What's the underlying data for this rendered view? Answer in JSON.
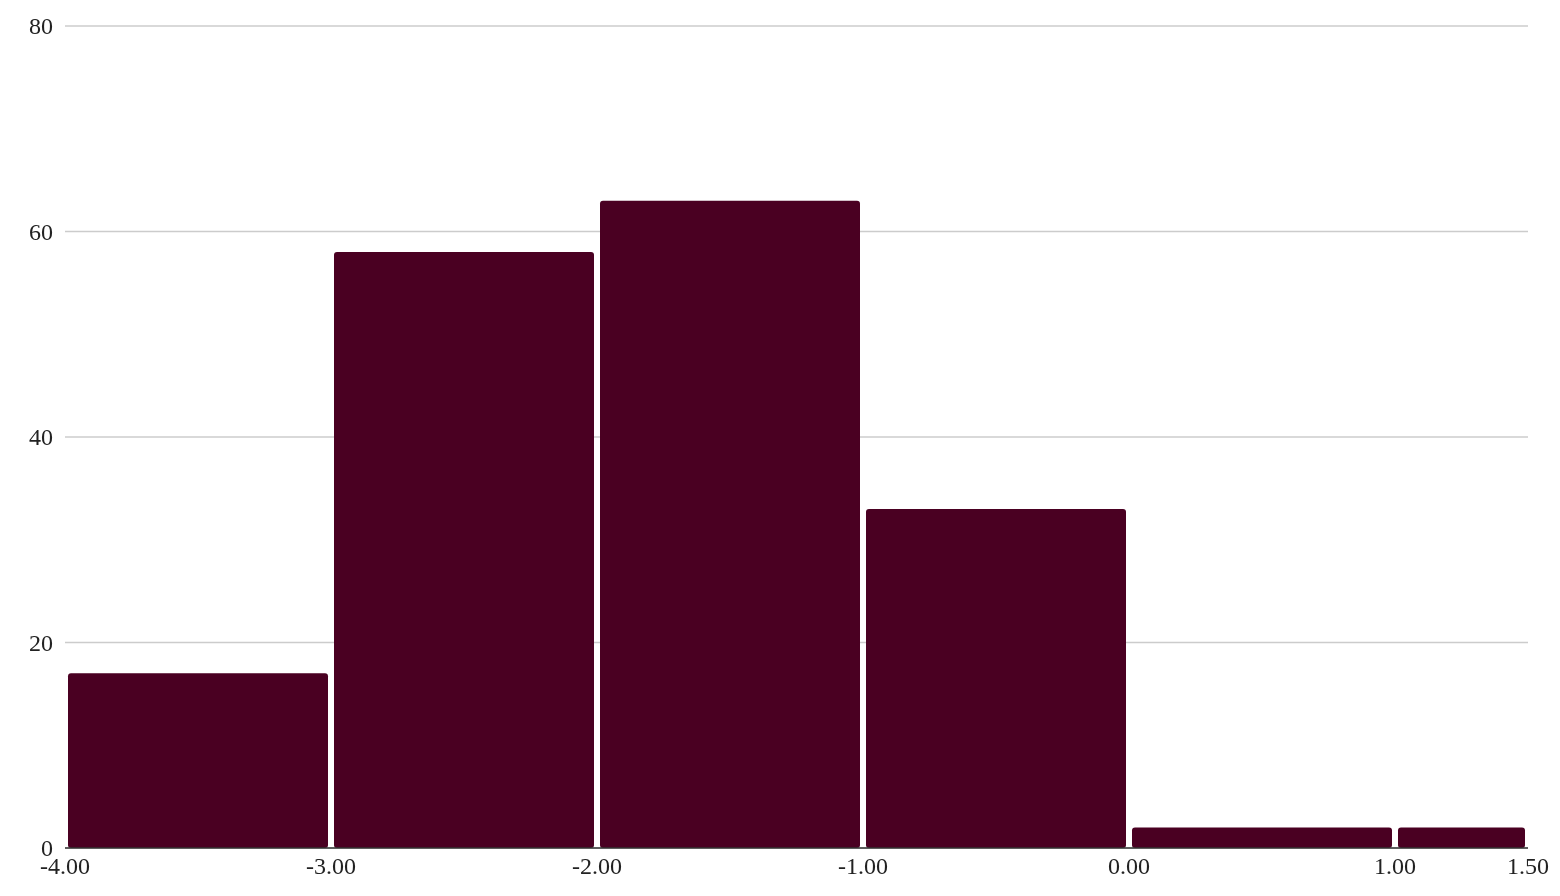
{
  "chart_data": {
    "type": "histogram",
    "bins": [
      -4,
      -3,
      -2,
      -1,
      0,
      1,
      1.5
    ],
    "values": [
      17,
      58,
      63,
      33,
      2,
      2
    ],
    "color": "#4a0022",
    "xticks": [
      {
        "value": -4,
        "label": "-4.00"
      },
      {
        "value": -3,
        "label": "-3.00"
      },
      {
        "value": -2,
        "label": "-2.00"
      },
      {
        "value": -1,
        "label": "-1.00"
      },
      {
        "value": 0,
        "label": "0.00"
      },
      {
        "value": 1,
        "label": "1.00"
      },
      {
        "value": 1.5,
        "label": "1.50"
      }
    ],
    "xlim": [
      -4,
      1.5
    ],
    "ylim": [
      0,
      80
    ],
    "yticks": [
      0,
      20,
      40,
      60,
      80
    ],
    "grid": "y"
  }
}
